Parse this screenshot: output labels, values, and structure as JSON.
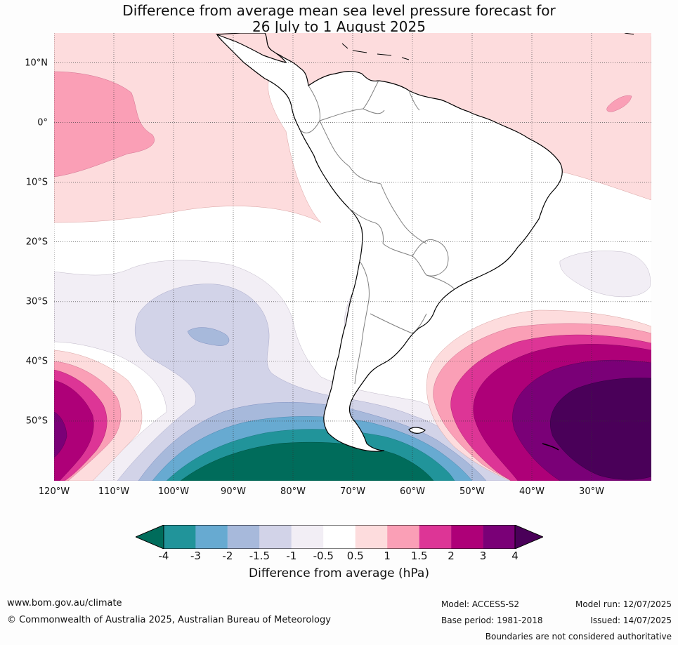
{
  "title": {
    "line1": "Difference from average mean sea level pressure forecast for",
    "line2": "26 July to 1 August 2025"
  },
  "map": {
    "region": "South America",
    "lat_labels": [
      "10°N",
      "0°",
      "10°S",
      "20°S",
      "30°S",
      "40°S",
      "50°S"
    ],
    "lat_values": [
      10,
      0,
      -10,
      -20,
      -30,
      -40,
      -50
    ],
    "lon_labels": [
      "120°W",
      "110°W",
      "100°W",
      "90°W",
      "80°W",
      "70°W",
      "60°W",
      "50°W",
      "40°W",
      "30°W"
    ],
    "lon_values": [
      -120,
      -110,
      -100,
      -90,
      -80,
      -70,
      -60,
      -50,
      -40,
      -30
    ],
    "extent": {
      "lon_min": -120,
      "lon_max": -20,
      "lat_min": -60,
      "lat_max": 15
    },
    "gridlines": true,
    "land_color": "#ffffff",
    "coastline_color": "#000000",
    "border_color": "#808080"
  },
  "colorbar": {
    "label": "Difference from average (hPa)",
    "ticks": [
      "-4",
      "-3",
      "-2",
      "-1.5",
      "-1",
      "-0.5",
      "0.5",
      "1",
      "1.5",
      "2",
      "3",
      "4"
    ],
    "low_extend_color": "#006c5b",
    "high_extend_color": "#4a0059",
    "colors": [
      "#21949a",
      "#67aad1",
      "#a7b9db",
      "#d2d3e8",
      "#f2eef5",
      "#ffffff",
      "#fddcdd",
      "#fa9fb6",
      "#dd3596",
      "#ae0078",
      "#7a0077"
    ]
  },
  "footer": {
    "website": "www.bom.gov.au/climate",
    "copyright": "© Commonwealth of Australia 2025, Australian Bureau of Meteorology",
    "model": "Model: ACCESS-S2",
    "base_period": "Base period: 1981-2018",
    "model_run": "Model run: 12/07/2025",
    "issued": "Issued: 14/07/2025",
    "disclaimer": "Boundaries are not considered authoritative"
  }
}
